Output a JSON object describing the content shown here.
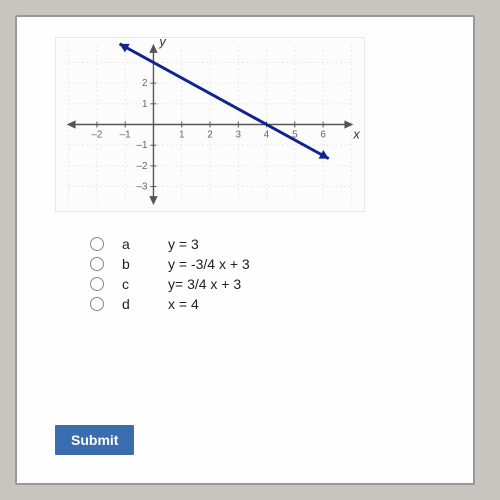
{
  "chart": {
    "type": "line",
    "x_axis_label": "x",
    "y_axis_label": "y",
    "xlim": [
      -3,
      7
    ],
    "ylim": [
      -3.8,
      3.8
    ],
    "xticks": [
      -2,
      -1,
      1,
      2,
      3,
      4,
      5,
      6
    ],
    "yticks": [
      -3,
      -2,
      -1,
      1,
      2
    ],
    "line_points": [
      [
        -1.2,
        3.9
      ],
      [
        6.2,
        -1.65
      ]
    ],
    "line_color": "#12238e",
    "line_width": 3,
    "axis_color": "#555555",
    "grid_color": "#dcdcdc",
    "tick_color": "#666666",
    "tick_fontsize": 10,
    "background_color": "#fcfcfc",
    "arrow_size": 7
  },
  "options": [
    {
      "letter": "a",
      "text": "y = 3"
    },
    {
      "letter": "b",
      "text": "y = -3/4 x + 3"
    },
    {
      "letter": "c",
      "text": "y= 3/4 x + 3"
    },
    {
      "letter": "d",
      "text": "x = 4"
    }
  ],
  "submit_label": "Submit"
}
